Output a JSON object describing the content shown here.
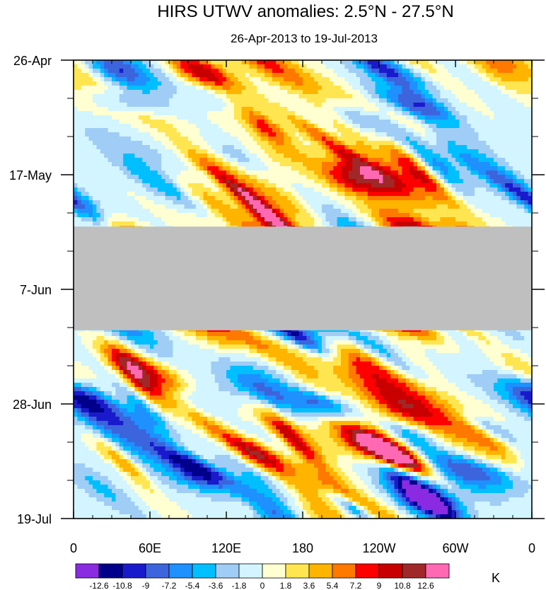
{
  "chart_data": {
    "type": "heatmap",
    "title": "HIRS UTWV anomalies: 2.5°N - 27.5°N",
    "subtitle": "26-Apr-2013 to 19-Jul-2013",
    "x_axis": {
      "ticks": [
        {
          "lon": 0,
          "label": "0"
        },
        {
          "lon": 60,
          "label": "60E"
        },
        {
          "lon": 120,
          "label": "120E"
        },
        {
          "lon": 180,
          "label": "180"
        },
        {
          "lon": 240,
          "label": "120W"
        },
        {
          "lon": 300,
          "label": "60W"
        },
        {
          "lon": 360,
          "label": "0"
        }
      ],
      "range": [
        0,
        360
      ]
    },
    "y_axis": {
      "ticks": [
        {
          "day": 0,
          "label": "26-Apr"
        },
        {
          "day": 21,
          "label": "17-May"
        },
        {
          "day": 42,
          "label": "7-Jun"
        },
        {
          "day": 63,
          "label": "28-Jun"
        },
        {
          "day": 84,
          "label": "19-Jul"
        }
      ],
      "range_days": [
        0,
        84
      ]
    },
    "missing_data_period": {
      "start_day": 30.5,
      "end_day": 49.5,
      "description": "missing data"
    },
    "colorbar": {
      "unit": "K",
      "levels": [
        "-12.6",
        "-10.8",
        "-9",
        "-7.2",
        "-5.4",
        "-3.6",
        "-1.8",
        "0",
        "1.8",
        "3.6",
        "5.4",
        "7.2",
        "9",
        "10.8",
        "12.6"
      ],
      "colors": [
        "#8a2be2",
        "#00008b",
        "#1a1acd",
        "#3c64dc",
        "#1e90ff",
        "#00bfff",
        "#a0cdf5",
        "#d2f5ff",
        "#ffffd2",
        "#ffe650",
        "#ffb400",
        "#ff7800",
        "#ff0000",
        "#c80000",
        "#a02828",
        "#ff69b4"
      ]
    }
  }
}
